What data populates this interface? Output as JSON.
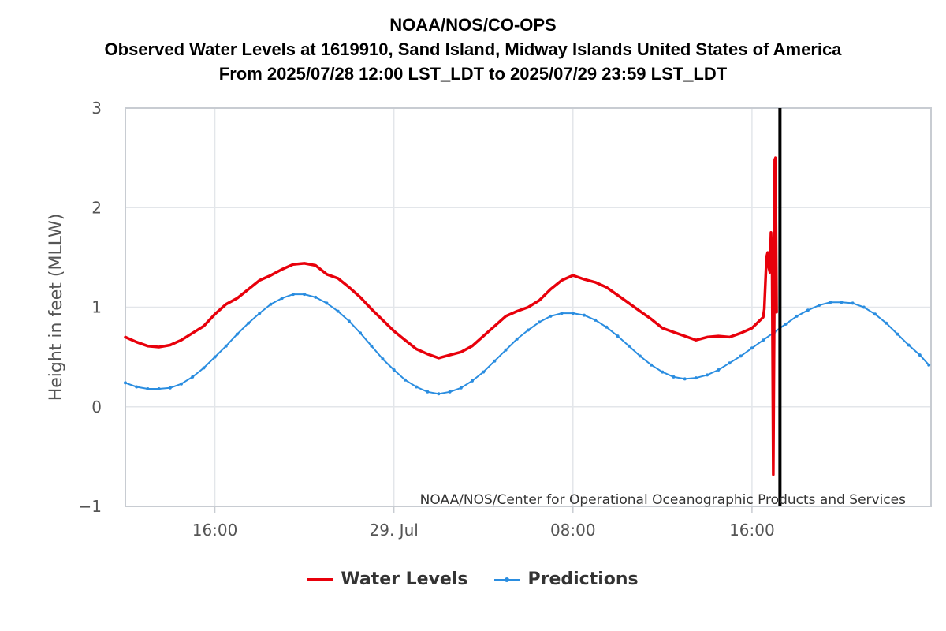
{
  "chart_data": {
    "type": "line",
    "title": "NOAA/NOS/CO-OPS",
    "subtitle": "Observed Water Levels at 1619910, Sand Island, Midway Islands United States of America",
    "subtitle2": "From 2025/07/28 12:00 LST_LDT to 2025/07/29 23:59 LST_LDT",
    "ylabel": "Height in feet (MLLW)",
    "xlabel": "",
    "ylim": [
      -1,
      3
    ],
    "xlim_hours": [
      0,
      36
    ],
    "yticks": [
      3,
      2,
      1,
      0,
      -1
    ],
    "ytick_labels": [
      "3",
      "2",
      "1",
      "0",
      "−1"
    ],
    "xticks": [
      {
        "hour": 4,
        "label": "16:00"
      },
      {
        "hour": 12,
        "label": "29. Jul"
      },
      {
        "hour": 20,
        "label": "08:00"
      },
      {
        "hour": 28,
        "label": "16:00"
      }
    ],
    "grid": true,
    "credit": "NOAA/NOS/Center for Operational Oceanographic Products and Services",
    "current_time_marker_hour": 29.25,
    "series": [
      {
        "name": "Water Levels",
        "color": "#e8000b",
        "points": [
          [
            0,
            0.7
          ],
          [
            0.5,
            0.65
          ],
          [
            1,
            0.61
          ],
          [
            1.5,
            0.6
          ],
          [
            2,
            0.62
          ],
          [
            2.5,
            0.67
          ],
          [
            3,
            0.74
          ],
          [
            3.5,
            0.81
          ],
          [
            4,
            0.93
          ],
          [
            4.5,
            1.03
          ],
          [
            5,
            1.09
          ],
          [
            5.5,
            1.18
          ],
          [
            6,
            1.27
          ],
          [
            6.5,
            1.32
          ],
          [
            7,
            1.38
          ],
          [
            7.5,
            1.43
          ],
          [
            8,
            1.44
          ],
          [
            8.5,
            1.42
          ],
          [
            9,
            1.33
          ],
          [
            9.5,
            1.29
          ],
          [
            10,
            1.2
          ],
          [
            10.5,
            1.1
          ],
          [
            11,
            0.98
          ],
          [
            11.5,
            0.87
          ],
          [
            12,
            0.76
          ],
          [
            12.5,
            0.67
          ],
          [
            13,
            0.58
          ],
          [
            13.5,
            0.53
          ],
          [
            14,
            0.49
          ],
          [
            14.5,
            0.52
          ],
          [
            15,
            0.55
          ],
          [
            15.5,
            0.61
          ],
          [
            16,
            0.71
          ],
          [
            16.5,
            0.81
          ],
          [
            17,
            0.91
          ],
          [
            17.5,
            0.96
          ],
          [
            18,
            1.0
          ],
          [
            18.5,
            1.07
          ],
          [
            19,
            1.18
          ],
          [
            19.5,
            1.27
          ],
          [
            20,
            1.32
          ],
          [
            20.5,
            1.28
          ],
          [
            21,
            1.25
          ],
          [
            21.5,
            1.2
          ],
          [
            22,
            1.12
          ],
          [
            22.5,
            1.04
          ],
          [
            23,
            0.96
          ],
          [
            23.5,
            0.88
          ],
          [
            24,
            0.79
          ],
          [
            24.5,
            0.75
          ],
          [
            25,
            0.71
          ],
          [
            25.5,
            0.67
          ],
          [
            26,
            0.7
          ],
          [
            26.5,
            0.71
          ],
          [
            27,
            0.7
          ],
          [
            27.5,
            0.74
          ],
          [
            28,
            0.79
          ],
          [
            28.5,
            0.9
          ],
          [
            28.55,
            0.98
          ],
          [
            28.65,
            1.5
          ],
          [
            28.7,
            1.55
          ],
          [
            28.75,
            1.4
          ],
          [
            28.8,
            1.35
          ],
          [
            28.85,
            1.75
          ],
          [
            28.9,
            1.45
          ],
          [
            28.95,
            -0.68
          ],
          [
            29.0,
            1.2
          ],
          [
            29.02,
            2.48
          ],
          [
            29.05,
            2.5
          ],
          [
            29.1,
            0.95
          ]
        ]
      },
      {
        "name": "Predictions",
        "color": "#2a8de0",
        "points": [
          [
            0,
            0.24
          ],
          [
            0.5,
            0.2
          ],
          [
            1,
            0.18
          ],
          [
            1.5,
            0.18
          ],
          [
            2,
            0.19
          ],
          [
            2.5,
            0.23
          ],
          [
            3,
            0.3
          ],
          [
            3.5,
            0.39
          ],
          [
            4,
            0.5
          ],
          [
            4.5,
            0.61
          ],
          [
            5,
            0.73
          ],
          [
            5.5,
            0.84
          ],
          [
            6,
            0.94
          ],
          [
            6.5,
            1.03
          ],
          [
            7,
            1.09
          ],
          [
            7.5,
            1.13
          ],
          [
            8,
            1.13
          ],
          [
            8.5,
            1.1
          ],
          [
            9,
            1.04
          ],
          [
            9.5,
            0.96
          ],
          [
            10,
            0.86
          ],
          [
            10.5,
            0.74
          ],
          [
            11,
            0.61
          ],
          [
            11.5,
            0.48
          ],
          [
            12,
            0.37
          ],
          [
            12.5,
            0.27
          ],
          [
            13,
            0.2
          ],
          [
            13.5,
            0.15
          ],
          [
            14,
            0.13
          ],
          [
            14.5,
            0.15
          ],
          [
            15,
            0.19
          ],
          [
            15.5,
            0.26
          ],
          [
            16,
            0.35
          ],
          [
            16.5,
            0.46
          ],
          [
            17,
            0.57
          ],
          [
            17.5,
            0.68
          ],
          [
            18,
            0.77
          ],
          [
            18.5,
            0.85
          ],
          [
            19,
            0.91
          ],
          [
            19.5,
            0.94
          ],
          [
            20,
            0.94
          ],
          [
            20.5,
            0.92
          ],
          [
            21,
            0.87
          ],
          [
            21.5,
            0.8
          ],
          [
            22,
            0.71
          ],
          [
            22.5,
            0.61
          ],
          [
            23,
            0.51
          ],
          [
            23.5,
            0.42
          ],
          [
            24,
            0.35
          ],
          [
            24.5,
            0.3
          ],
          [
            25,
            0.28
          ],
          [
            25.5,
            0.29
          ],
          [
            26,
            0.32
          ],
          [
            26.5,
            0.37
          ],
          [
            27,
            0.44
          ],
          [
            27.5,
            0.51
          ],
          [
            28,
            0.59
          ],
          [
            28.5,
            0.67
          ],
          [
            29,
            0.75
          ],
          [
            29.5,
            0.83
          ],
          [
            30,
            0.91
          ],
          [
            30.5,
            0.97
          ],
          [
            31,
            1.02
          ],
          [
            31.5,
            1.05
          ],
          [
            32,
            1.05
          ],
          [
            32.5,
            1.04
          ],
          [
            33,
            1.0
          ],
          [
            33.5,
            0.93
          ],
          [
            34,
            0.84
          ],
          [
            34.5,
            0.73
          ],
          [
            35,
            0.62
          ],
          [
            35.5,
            0.52
          ],
          [
            35.9,
            0.42
          ]
        ]
      }
    ]
  },
  "legend": {
    "water_levels": "Water Levels",
    "predictions": "Predictions"
  }
}
